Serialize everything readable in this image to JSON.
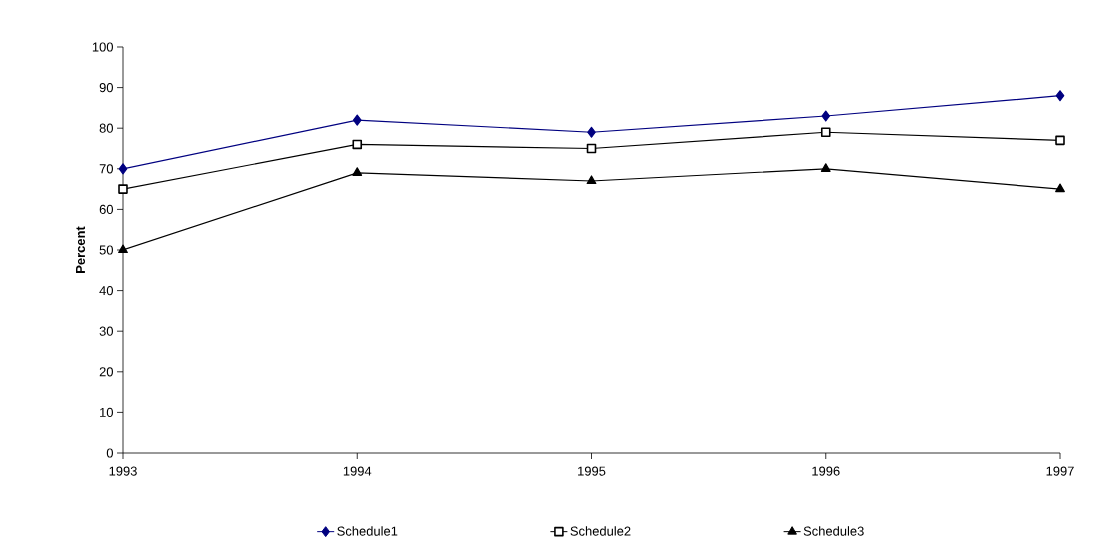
{
  "chart_data": {
    "type": "line",
    "ylabel": "Percent",
    "x": [
      1993,
      1994,
      1995,
      1996,
      1997
    ],
    "xlim": [
      1993,
      1997
    ],
    "xticks": [
      1993,
      1994,
      1995,
      1996,
      1997
    ],
    "ylim": [
      0,
      100
    ],
    "yticks": [
      0,
      10,
      20,
      30,
      40,
      50,
      60,
      70,
      80,
      90,
      100
    ],
    "series": [
      {
        "name": "Schedule1",
        "color": "#000080",
        "marker": "diamond",
        "values": [
          70,
          82,
          79,
          83,
          88
        ]
      },
      {
        "name": "Schedule2",
        "color": "#000000",
        "marker": "square",
        "values": [
          65,
          76,
          75,
          79,
          77
        ]
      },
      {
        "name": "Schedule3",
        "color": "#000000",
        "marker": "triangle",
        "values": [
          50,
          69,
          67,
          70,
          65
        ]
      }
    ],
    "grid": false,
    "legend": "bottom"
  }
}
